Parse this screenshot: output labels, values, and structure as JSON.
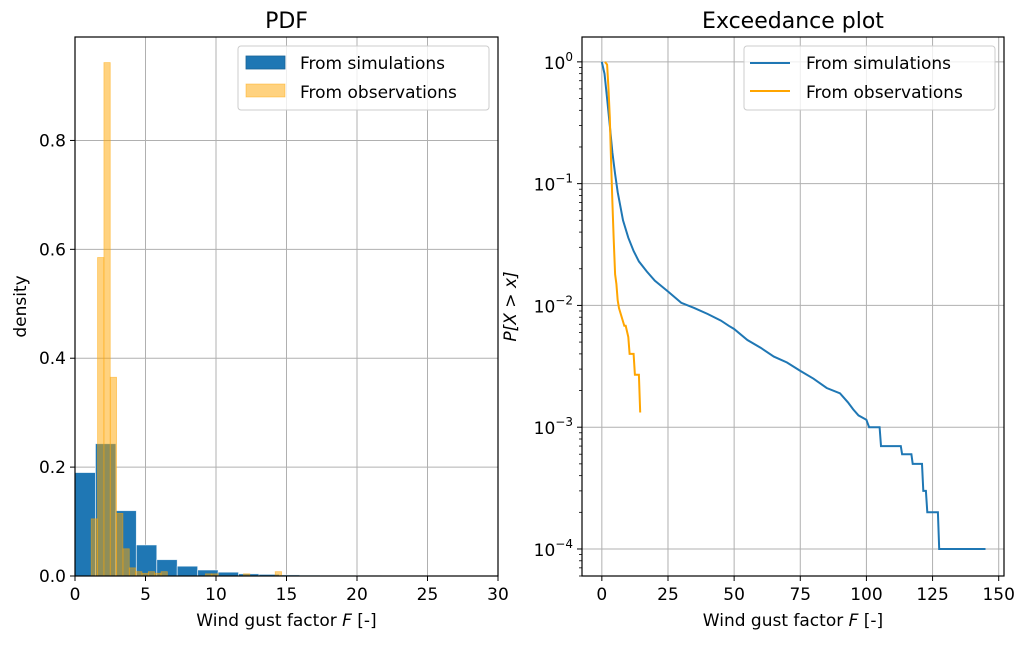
{
  "chart_data": [
    {
      "type": "bar",
      "title": "PDF",
      "xlabel": "Wind gust factor F [-]",
      "xlabel_parts": [
        "Wind gust factor ",
        "F",
        " [-]"
      ],
      "ylabel": "density",
      "xlim": [
        0,
        30
      ],
      "ylim": [
        0,
        0.99
      ],
      "xticks": [
        0,
        5,
        10,
        15,
        20,
        25,
        30
      ],
      "xtick_labels": [
        "0",
        "5",
        "10",
        "15",
        "20",
        "25",
        "30"
      ],
      "yticks": [
        0.0,
        0.2,
        0.4,
        0.6,
        0.8
      ],
      "ytick_labels": [
        "0.0",
        "0.2",
        "0.4",
        "0.6",
        "0.8"
      ],
      "grid": true,
      "legend": {
        "position": "top-right",
        "entries": [
          "From simulations",
          "From observations"
        ]
      },
      "series": [
        {
          "name": "From simulations",
          "color": "#1f77b4",
          "alpha": 1.0,
          "bin_edges": [
            0,
            1.45,
            2.9,
            4.35,
            5.8,
            7.25,
            8.7,
            10.15,
            11.6,
            13.05,
            14.5,
            15.95,
            17.4,
            18.85,
            20.3,
            21.75,
            23.2,
            24.65,
            26.1,
            27.55,
            29.0,
            30.45
          ],
          "values": [
            0.19,
            0.243,
            0.12,
            0.057,
            0.03,
            0.018,
            0.011,
            0.007,
            0.004,
            0.003,
            0.002,
            0.0015,
            0.0012,
            0.001,
            0.001,
            0.0008,
            0.0007,
            0.0,
            0.0006,
            0.0005,
            0.0005
          ]
        },
        {
          "name": "From observations",
          "color": "#ffa500",
          "alpha": 0.5,
          "bin_edges": [
            1.15,
            1.6,
            2.05,
            2.5,
            2.95,
            3.4,
            3.85,
            4.3,
            4.75,
            5.2,
            5.65,
            6.1,
            6.55,
            7.0,
            7.45,
            7.9,
            8.35,
            8.8,
            9.25,
            9.7,
            10.15,
            10.6,
            11.05,
            11.5,
            11.95,
            12.4,
            12.85,
            13.3,
            13.75,
            14.2,
            14.65
          ],
          "values": [
            0.105,
            0.585,
            0.943,
            0.365,
            0.115,
            0.05,
            0.015,
            0.008,
            0.005,
            0.008,
            0.005,
            0.008,
            0.0,
            0.0,
            0.0,
            0.0,
            0.0,
            0.0,
            0.004,
            0.004,
            0.0,
            0.0,
            0.0,
            0.0,
            0.004,
            0.0,
            0.0,
            0.0,
            0.0,
            0.008
          ]
        }
      ]
    },
    {
      "type": "line",
      "title": "Exceedance plot",
      "xlabel": "Wind gust factor F [-]",
      "xlabel_parts": [
        "Wind gust factor ",
        "F",
        " [-]"
      ],
      "ylabel": "P[X > x]",
      "xscale": "linear",
      "yscale": "log",
      "xlim": [
        -7.5,
        152
      ],
      "ylim": [
        6e-05,
        1.6
      ],
      "xticks": [
        0,
        25,
        50,
        75,
        100,
        125,
        150
      ],
      "xtick_labels": [
        "0",
        "25",
        "50",
        "75",
        "100",
        "125",
        "150"
      ],
      "yticks": [
        1,
        0.1,
        0.01,
        0.001,
        0.0001
      ],
      "ytick_labels": [
        {
          "base": "10",
          "exp": "0"
        },
        {
          "base": "10",
          "exp": "−1"
        },
        {
          "base": "10",
          "exp": "−2"
        },
        {
          "base": "10",
          "exp": "−3"
        },
        {
          "base": "10",
          "exp": "−4"
        }
      ],
      "grid": true,
      "legend": {
        "position": "top-right",
        "entries": [
          "From simulations",
          "From observations"
        ]
      },
      "series": [
        {
          "name": "From simulations",
          "color": "#1f77b4",
          "x": [
            0,
            1,
            2,
            3,
            4,
            5,
            6,
            7,
            8,
            10,
            12,
            14,
            17,
            20,
            25,
            30,
            35,
            40,
            45,
            48,
            50,
            55,
            60,
            65,
            70,
            75,
            80,
            85,
            90,
            93,
            95,
            97,
            100,
            101,
            105,
            105.5,
            113,
            113.5,
            117,
            117.5,
            121,
            121.5,
            122.5,
            123,
            127,
            127.5,
            145
          ],
          "y": [
            1.0,
            0.8,
            0.5,
            0.3,
            0.18,
            0.12,
            0.085,
            0.065,
            0.05,
            0.036,
            0.028,
            0.023,
            0.019,
            0.016,
            0.013,
            0.0105,
            0.0095,
            0.0085,
            0.0075,
            0.0068,
            0.0064,
            0.0052,
            0.0045,
            0.0038,
            0.0034,
            0.0029,
            0.0025,
            0.0021,
            0.0019,
            0.0016,
            0.0014,
            0.00125,
            0.00115,
            0.001,
            0.001,
            0.0007,
            0.0007,
            0.0006,
            0.0006,
            0.0005,
            0.0005,
            0.0003,
            0.0003,
            0.0002,
            0.0002,
            0.0001,
            0.0001
          ]
        },
        {
          "name": "From observations",
          "color": "#ffa500",
          "x": [
            1.2,
            2.0,
            2.5,
            3.0,
            3.5,
            4.0,
            4.5,
            5.0,
            5.5,
            6.0,
            6.5,
            8.5,
            9.0,
            10.0,
            10.5,
            12.0,
            12.5,
            14.0,
            14.5
          ],
          "y": [
            1.0,
            0.95,
            0.6,
            0.35,
            0.15,
            0.07,
            0.035,
            0.018,
            0.015,
            0.011,
            0.0095,
            0.0068,
            0.0068,
            0.0055,
            0.004,
            0.004,
            0.0027,
            0.0027,
            0.00132
          ]
        }
      ]
    }
  ]
}
